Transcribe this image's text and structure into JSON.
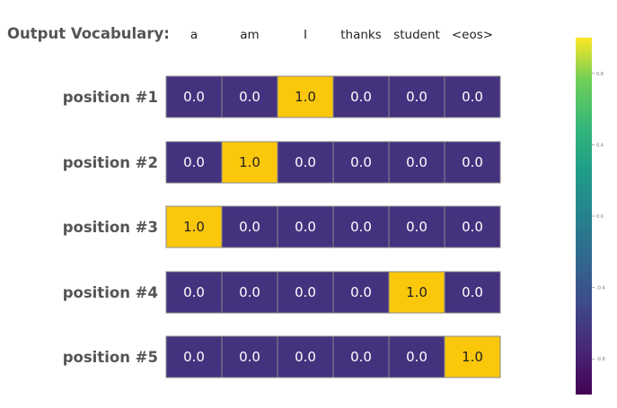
{
  "chart_data": {
    "type": "heatmap",
    "title": "Output Vocabulary:",
    "columns": [
      "a",
      "am",
      "I",
      "thanks",
      "student",
      "<eos>"
    ],
    "rows": [
      "position #1",
      "position #2",
      "position #3",
      "position #4",
      "position #5"
    ],
    "values": [
      [
        0.0,
        0.0,
        1.0,
        0.0,
        0.0,
        0.0
      ],
      [
        0.0,
        1.0,
        0.0,
        0.0,
        0.0,
        0.0
      ],
      [
        1.0,
        0.0,
        0.0,
        0.0,
        0.0,
        0.0
      ],
      [
        0.0,
        0.0,
        0.0,
        0.0,
        1.0,
        0.0
      ],
      [
        0.0,
        0.0,
        0.0,
        0.0,
        0.0,
        1.0
      ]
    ],
    "cell_labels": [
      [
        "0.0",
        "0.0",
        "1.0",
        "0.0",
        "0.0",
        "0.0"
      ],
      [
        "0.0",
        "1.0",
        "0.0",
        "0.0",
        "0.0",
        "0.0"
      ],
      [
        "1.0",
        "0.0",
        "0.0",
        "0.0",
        "0.0",
        "0.0"
      ],
      [
        "0.0",
        "0.0",
        "0.0",
        "0.0",
        "1.0",
        "0.0"
      ],
      [
        "0.0",
        "0.0",
        "0.0",
        "0.0",
        "0.0",
        "1.0"
      ]
    ],
    "colormap": "viridis",
    "colorbar": {
      "range": [
        -1.0,
        1.0
      ],
      "ticks": [
        0.8,
        0.4,
        0.0,
        -0.4,
        -0.8
      ],
      "tick_labels": [
        "0.8",
        "0.4",
        "0.0",
        "-0.4",
        "-0.8"
      ]
    },
    "colors": {
      "low": "#45327f",
      "high": "#fbc70b",
      "grid": "#888888"
    }
  }
}
